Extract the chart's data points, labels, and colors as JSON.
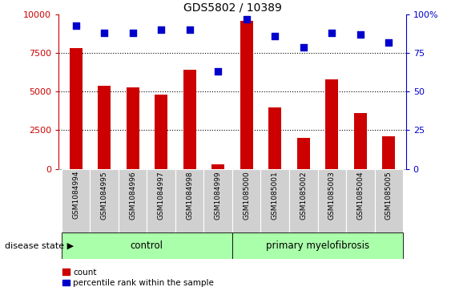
{
  "title": "GDS5802 / 10389",
  "categories": [
    "GSM1084994",
    "GSM1084995",
    "GSM1084996",
    "GSM1084997",
    "GSM1084998",
    "GSM1084999",
    "GSM1085000",
    "GSM1085001",
    "GSM1085002",
    "GSM1085003",
    "GSM1085004",
    "GSM1085005"
  ],
  "bar_values": [
    7800,
    5400,
    5300,
    4800,
    6400,
    300,
    9600,
    4000,
    2000,
    5800,
    3600,
    2100
  ],
  "percentile_values": [
    93,
    88,
    88,
    90,
    90,
    63,
    97,
    86,
    79,
    88,
    87,
    82
  ],
  "bar_color": "#cc0000",
  "dot_color": "#0000cc",
  "ylim_left": [
    0,
    10000
  ],
  "ylim_right": [
    0,
    100
  ],
  "yticks_left": [
    0,
    2500,
    5000,
    7500,
    10000
  ],
  "ytick_labels_left": [
    "0",
    "2500",
    "5000",
    "7500",
    "10000"
  ],
  "yticks_right": [
    0,
    25,
    50,
    75,
    100
  ],
  "ytick_labels_right": [
    "0",
    "25",
    "50",
    "75",
    "100%"
  ],
  "control_label": "control",
  "disease_label": "primary myelofibrosis",
  "disease_state_label": "disease state",
  "legend_count": "count",
  "legend_percentile": "percentile rank within the sample",
  "n_control": 6,
  "n_disease": 6,
  "control_bg": "#aaffaa",
  "disease_bg": "#aaffaa",
  "xticklabel_bg": "#d0d0d0",
  "bar_width": 0.45,
  "dot_size": 30,
  "title_fontsize": 10,
  "tick_fontsize": 8,
  "label_fontsize": 8,
  "legend_fontsize": 7.5
}
